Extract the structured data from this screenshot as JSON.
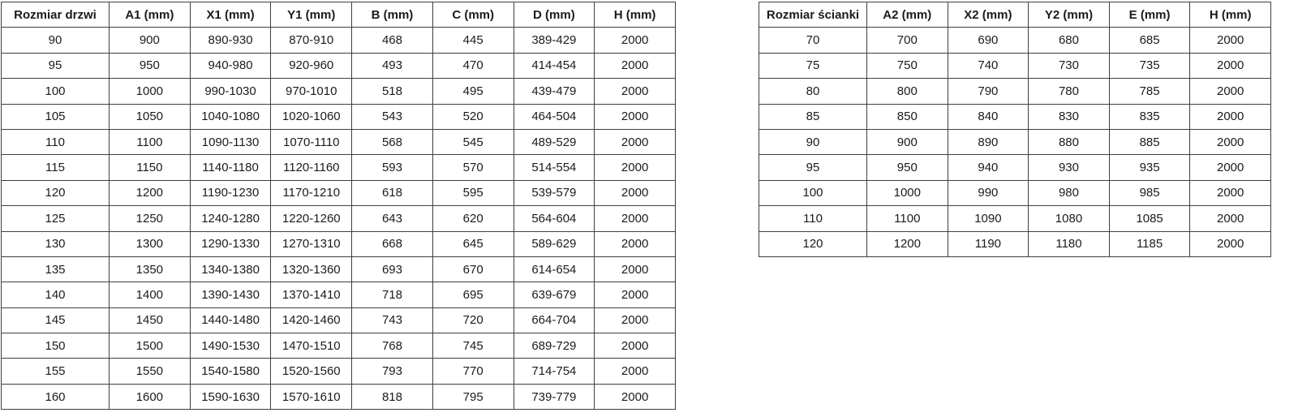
{
  "page": {
    "background": "#ffffff",
    "text_color": "#1b1b1b",
    "border_color": "#3f3f3f"
  },
  "tables": [
    {
      "name": "door-sizes",
      "headers": [
        "Rozmiar drzwi",
        "A1 (mm)",
        "X1 (mm)",
        "Y1 (mm)",
        "B (mm)",
        "C (mm)",
        "D (mm)",
        "H (mm)"
      ],
      "rows": [
        [
          "90",
          "900",
          "890-930",
          "870-910",
          "468",
          "445",
          "389-429",
          "2000"
        ],
        [
          "95",
          "950",
          "940-980",
          "920-960",
          "493",
          "470",
          "414-454",
          "2000"
        ],
        [
          "100",
          "1000",
          "990-1030",
          "970-1010",
          "518",
          "495",
          "439-479",
          "2000"
        ],
        [
          "105",
          "1050",
          "1040-1080",
          "1020-1060",
          "543",
          "520",
          "464-504",
          "2000"
        ],
        [
          "110",
          "1100",
          "1090-1130",
          "1070-1110",
          "568",
          "545",
          "489-529",
          "2000"
        ],
        [
          "115",
          "1150",
          "1140-1180",
          "1120-1160",
          "593",
          "570",
          "514-554",
          "2000"
        ],
        [
          "120",
          "1200",
          "1190-1230",
          "1170-1210",
          "618",
          "595",
          "539-579",
          "2000"
        ],
        [
          "125",
          "1250",
          "1240-1280",
          "1220-1260",
          "643",
          "620",
          "564-604",
          "2000"
        ],
        [
          "130",
          "1300",
          "1290-1330",
          "1270-1310",
          "668",
          "645",
          "589-629",
          "2000"
        ],
        [
          "135",
          "1350",
          "1340-1380",
          "1320-1360",
          "693",
          "670",
          "614-654",
          "2000"
        ],
        [
          "140",
          "1400",
          "1390-1430",
          "1370-1410",
          "718",
          "695",
          "639-679",
          "2000"
        ],
        [
          "145",
          "1450",
          "1440-1480",
          "1420-1460",
          "743",
          "720",
          "664-704",
          "2000"
        ],
        [
          "150",
          "1500",
          "1490-1530",
          "1470-1510",
          "768",
          "745",
          "689-729",
          "2000"
        ],
        [
          "155",
          "1550",
          "1540-1580",
          "1520-1560",
          "793",
          "770",
          "714-754",
          "2000"
        ],
        [
          "160",
          "1600",
          "1590-1630",
          "1570-1610",
          "818",
          "795",
          "739-779",
          "2000"
        ]
      ]
    },
    {
      "name": "wall-panel-sizes",
      "headers": [
        "Rozmiar ścianki",
        "A2 (mm)",
        "X2 (mm)",
        "Y2 (mm)",
        "E (mm)",
        "H (mm)"
      ],
      "rows": [
        [
          "70",
          "700",
          "690",
          "680",
          "685",
          "2000"
        ],
        [
          "75",
          "750",
          "740",
          "730",
          "735",
          "2000"
        ],
        [
          "80",
          "800",
          "790",
          "780",
          "785",
          "2000"
        ],
        [
          "85",
          "850",
          "840",
          "830",
          "835",
          "2000"
        ],
        [
          "90",
          "900",
          "890",
          "880",
          "885",
          "2000"
        ],
        [
          "95",
          "950",
          "940",
          "930",
          "935",
          "2000"
        ],
        [
          "100",
          "1000",
          "990",
          "980",
          "985",
          "2000"
        ],
        [
          "110",
          "1100",
          "1090",
          "1080",
          "1085",
          "2000"
        ],
        [
          "120",
          "1200",
          "1190",
          "1180",
          "1185",
          "2000"
        ]
      ]
    }
  ]
}
